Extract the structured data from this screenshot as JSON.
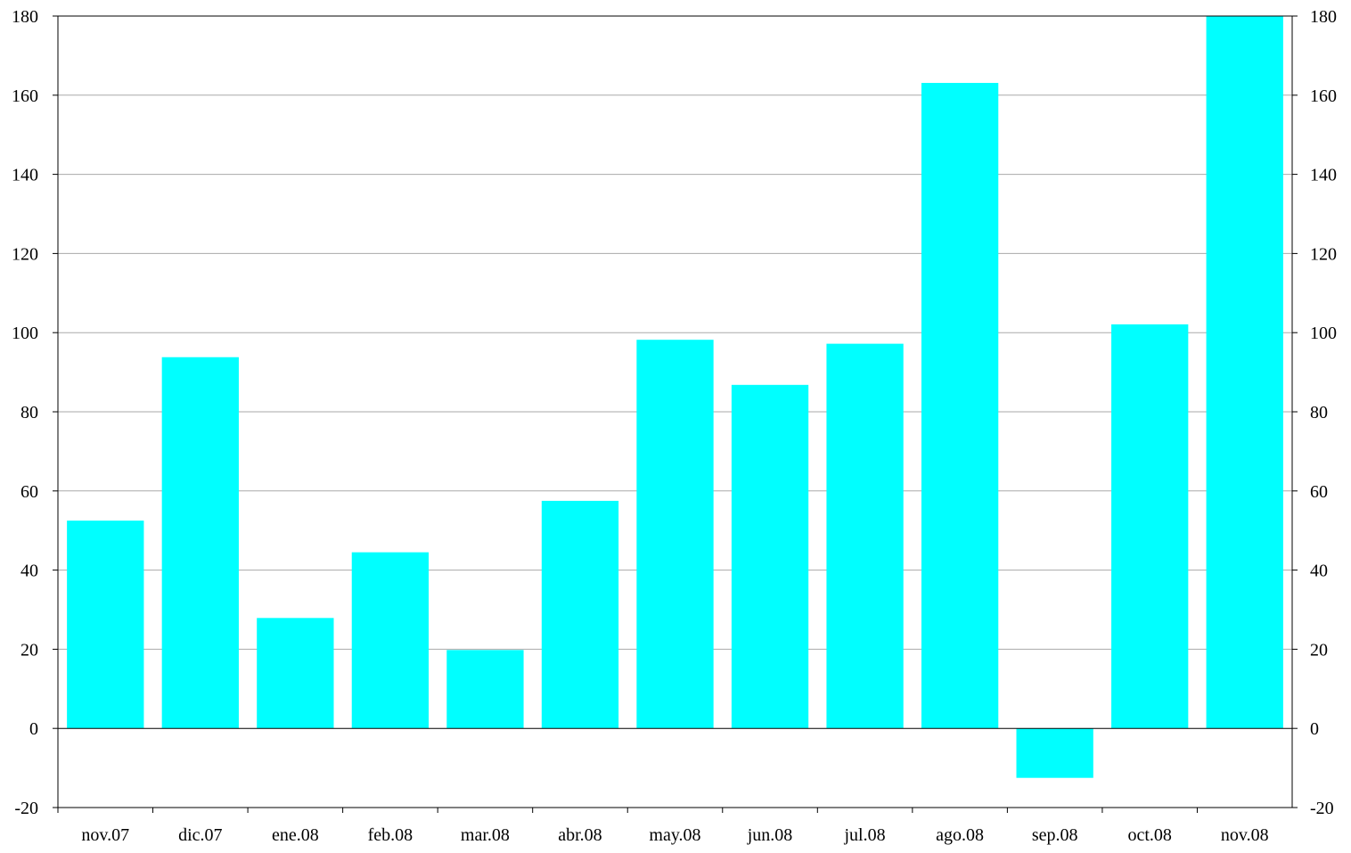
{
  "chart_data": {
    "type": "bar",
    "categories": [
      "nov.07",
      "dic.07",
      "ene.08",
      "feb.08",
      "mar.08",
      "abr.08",
      "may.08",
      "jun.08",
      "jul.08",
      "ago.08",
      "sep.08",
      "oct.08",
      "nov.08"
    ],
    "values": [
      52.5,
      93.8,
      27.9,
      44.5,
      19.8,
      57.5,
      98.2,
      86.8,
      97.2,
      163.1,
      -12.5,
      102.1,
      180.0
    ],
    "ylim": [
      -20,
      180
    ],
    "yticks": [
      "-20",
      "0",
      "20",
      "40",
      "60",
      "80",
      "100",
      "120",
      "140",
      "160",
      "180"
    ],
    "secondary_yticks": [
      "-20",
      "0",
      "20",
      "40",
      "60",
      "80",
      "100",
      "120",
      "140",
      "160",
      "180"
    ],
    "grid": true,
    "legend": "none",
    "bar_color": "#00ffff",
    "title": "",
    "xlabel": "",
    "ylabel": ""
  }
}
